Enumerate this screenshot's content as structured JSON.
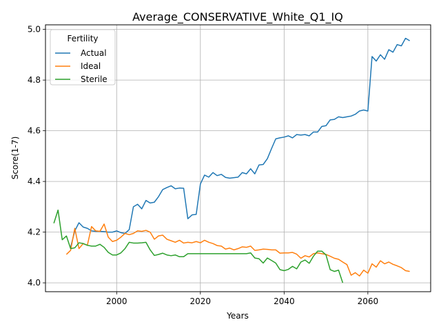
{
  "chart_data": {
    "type": "line",
    "title": "Average_CONSERVATIVE_White_Q1_IQ",
    "xlabel": "Years",
    "ylabel": "Score(1-7)",
    "xlim": [
      1983,
      2075
    ],
    "ylim": [
      3.965,
      5.018
    ],
    "xticks": [
      2000,
      2020,
      2040,
      2060
    ],
    "yticks": [
      4.0,
      4.2,
      4.4,
      4.6,
      4.8,
      5.0
    ],
    "ytick_labels": [
      "4.0",
      "4.2",
      "4.4",
      "4.6",
      "4.8",
      "5.0"
    ],
    "grid": true,
    "legend": {
      "title": "Fertility",
      "placement": "top-left"
    },
    "series": [
      {
        "name": "Actual",
        "color": "#1f77b4",
        "x": [
          1989,
          1990,
          1991,
          1992,
          1993,
          1994,
          1995,
          1996,
          1997,
          1998,
          1999,
          2000,
          2001,
          2002,
          2003,
          2004,
          2005,
          2006,
          2007,
          2008,
          2009,
          2010,
          2011,
          2012,
          2013,
          2014,
          2015,
          2016,
          2017,
          2018,
          2019,
          2020,
          2021,
          2022,
          2023,
          2024,
          2025,
          2026,
          2027,
          2028,
          2029,
          2030,
          2031,
          2032,
          2033,
          2034,
          2035,
          2036,
          2037,
          2038,
          2039,
          2040,
          2041,
          2042,
          2043,
          2044,
          2045,
          2046,
          2047,
          2048,
          2049,
          2050,
          2051,
          2052,
          2053,
          2054,
          2055,
          2056,
          2057,
          2058,
          2059,
          2060,
          2061,
          2062,
          2063,
          2064,
          2065,
          2066,
          2067,
          2068,
          2069,
          2070
        ],
        "values": [
          4.14,
          4.205,
          4.237,
          4.22,
          4.215,
          4.205,
          4.203,
          4.203,
          4.202,
          4.2,
          4.2,
          4.205,
          4.198,
          4.195,
          4.21,
          4.3,
          4.31,
          4.292,
          4.325,
          4.315,
          4.318,
          4.34,
          4.368,
          4.376,
          4.383,
          4.371,
          4.374,
          4.373,
          4.253,
          4.268,
          4.27,
          4.39,
          4.425,
          4.417,
          4.435,
          4.423,
          4.428,
          4.416,
          4.413,
          4.415,
          4.417,
          4.435,
          4.43,
          4.45,
          4.43,
          4.465,
          4.467,
          4.49,
          4.53,
          4.568,
          4.572,
          4.575,
          4.58,
          4.572,
          4.585,
          4.583,
          4.585,
          4.58,
          4.595,
          4.595,
          4.617,
          4.62,
          4.643,
          4.645,
          4.655,
          4.652,
          4.655,
          4.658,
          4.665,
          4.678,
          4.682,
          4.678,
          4.893,
          4.875,
          4.9,
          4.882,
          4.92,
          4.91,
          4.94,
          4.935,
          4.965,
          4.955
        ]
      },
      {
        "name": "Ideal",
        "color": "#ff7f0e",
        "x": [
          1988,
          1989,
          1990,
          1991,
          1992,
          1993,
          1994,
          1995,
          1996,
          1997,
          1998,
          1999,
          2000,
          2001,
          2002,
          2003,
          2004,
          2005,
          2006,
          2007,
          2008,
          2009,
          2010,
          2011,
          2012,
          2013,
          2014,
          2015,
          2016,
          2017,
          2018,
          2019,
          2020,
          2021,
          2022,
          2023,
          2024,
          2025,
          2026,
          2027,
          2028,
          2029,
          2030,
          2031,
          2032,
          2033,
          2034,
          2035,
          2036,
          2037,
          2038,
          2039,
          2040,
          2041,
          2042,
          2043,
          2044,
          2045,
          2046,
          2047,
          2048,
          2049,
          2050,
          2051,
          2052,
          2053,
          2054,
          2055,
          2056,
          2057,
          2058,
          2059,
          2060,
          2061,
          2062,
          2063,
          2064,
          2065,
          2066,
          2067,
          2068,
          2069,
          2070
        ],
        "values": [
          4.112,
          4.128,
          4.215,
          4.135,
          4.155,
          4.148,
          4.222,
          4.205,
          4.203,
          4.232,
          4.18,
          4.163,
          4.168,
          4.18,
          4.195,
          4.19,
          4.195,
          4.205,
          4.203,
          4.207,
          4.2,
          4.172,
          4.185,
          4.188,
          4.172,
          4.166,
          4.16,
          4.168,
          4.157,
          4.16,
          4.158,
          4.163,
          4.158,
          4.168,
          4.16,
          4.155,
          4.147,
          4.145,
          4.133,
          4.137,
          4.13,
          4.135,
          4.142,
          4.14,
          4.145,
          4.128,
          4.13,
          4.133,
          4.132,
          4.13,
          4.13,
          4.117,
          4.118,
          4.118,
          4.12,
          4.113,
          4.097,
          4.107,
          4.102,
          4.115,
          4.118,
          4.115,
          4.112,
          4.105,
          4.097,
          4.093,
          4.082,
          4.072,
          4.03,
          4.04,
          4.027,
          4.05,
          4.038,
          4.075,
          4.062,
          4.087,
          4.075,
          4.082,
          4.073,
          4.067,
          4.06,
          4.048,
          4.045
        ]
      },
      {
        "name": "Sterile",
        "color": "#2ca02c",
        "x": [
          1985,
          1986,
          1987,
          1988,
          1989,
          1990,
          1991,
          1992,
          1993,
          1994,
          1995,
          1996,
          1997,
          1998,
          1999,
          2000,
          2001,
          2002,
          2003,
          2004,
          2005,
          2006,
          2007,
          2008,
          2009,
          2010,
          2011,
          2012,
          2013,
          2014,
          2015,
          2016,
          2017,
          2018,
          2019,
          2020,
          2021,
          2022,
          2023,
          2024,
          2025,
          2026,
          2027,
          2028,
          2029,
          2030,
          2031,
          2032,
          2033,
          2034,
          2035,
          2036,
          2037,
          2038,
          2039,
          2040,
          2041,
          2042,
          2043,
          2044,
          2045,
          2046,
          2047,
          2048,
          2049,
          2050,
          2051,
          2052,
          2053,
          2054
        ],
        "values": [
          4.235,
          4.287,
          4.17,
          4.185,
          4.135,
          4.138,
          4.158,
          4.155,
          4.148,
          4.145,
          4.145,
          4.152,
          4.14,
          4.12,
          4.11,
          4.11,
          4.118,
          4.135,
          4.16,
          4.157,
          4.157,
          4.158,
          4.16,
          4.13,
          4.108,
          4.112,
          4.117,
          4.11,
          4.107,
          4.11,
          4.103,
          4.103,
          4.115,
          4.115,
          4.115,
          4.115,
          4.115,
          4.115,
          4.115,
          4.115,
          4.115,
          4.115,
          4.115,
          4.115,
          4.115,
          4.115,
          4.115,
          4.118,
          4.098,
          4.095,
          4.078,
          4.098,
          4.088,
          4.078,
          4.052,
          4.048,
          4.053,
          4.065,
          4.055,
          4.082,
          4.09,
          4.077,
          4.105,
          4.125,
          4.125,
          4.11,
          4.052,
          4.045,
          4.05,
          4.0
        ]
      }
    ]
  }
}
